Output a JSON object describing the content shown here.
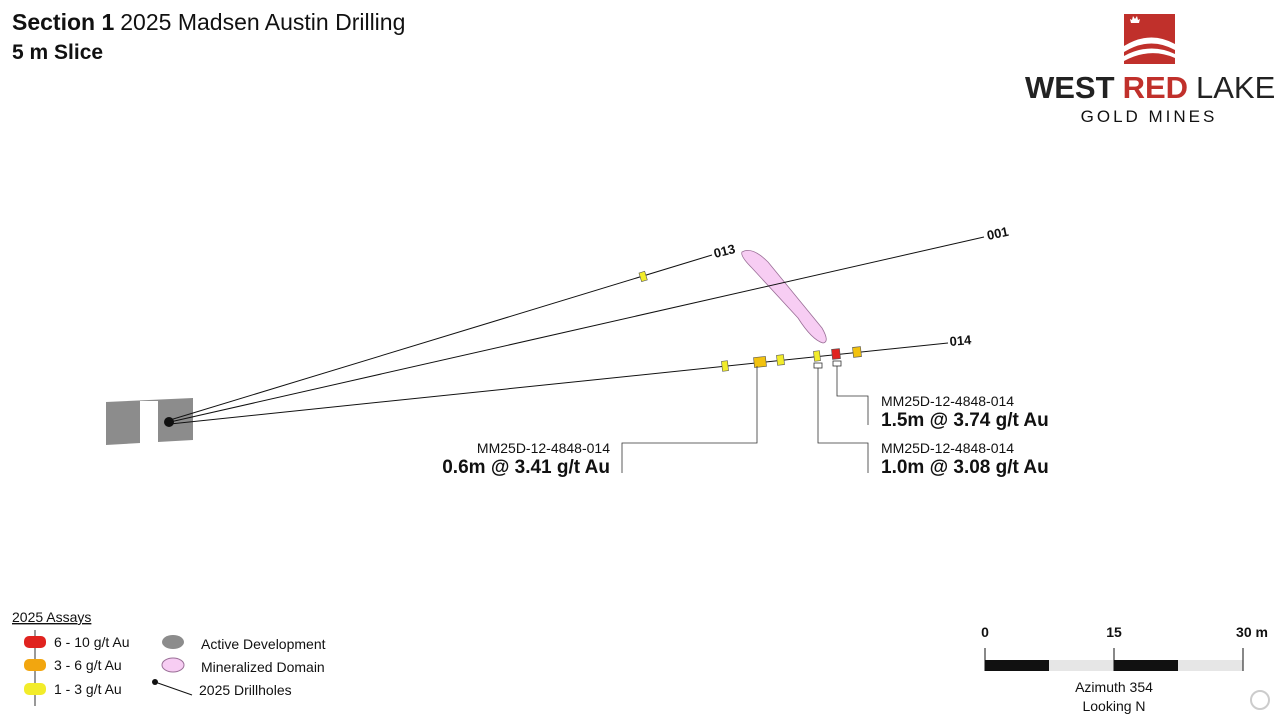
{
  "header": {
    "title": "Section 1",
    "title_rest": "2025 Madsen Austin Drilling",
    "slice": "5 m Slice"
  },
  "logo": {
    "west": "WEST",
    "red": "RED",
    "lake": "LAKE",
    "tagline": "GOLD MINES"
  },
  "drillholes": [
    {
      "label": "013"
    },
    {
      "label": "001"
    },
    {
      "label": "014"
    }
  ],
  "intercepts": [
    {
      "hole_id": "MM25D-12-4848-014",
      "result": "1.5m @ 3.74 g/t Au"
    },
    {
      "hole_id": "MM25D-12-4848-014",
      "result": "1.0m @ 3.08 g/t Au"
    },
    {
      "hole_id": "MM25D-12-4848-014",
      "result": "0.6m @ 3.41 g/t Au"
    }
  ],
  "legend": {
    "title": "2025 Assays",
    "items": [
      "6 - 10 g/t Au",
      "3 - 6 g/t Au",
      "1 - 3 g/t Au",
      "Active Development",
      "Mineralized Domain",
      "2025 Drillholes"
    ]
  },
  "scale_bar": {
    "labels": [
      "0",
      "15",
      "30 m"
    ],
    "azimuth": "Azimuth 354",
    "view": "Looking N"
  }
}
